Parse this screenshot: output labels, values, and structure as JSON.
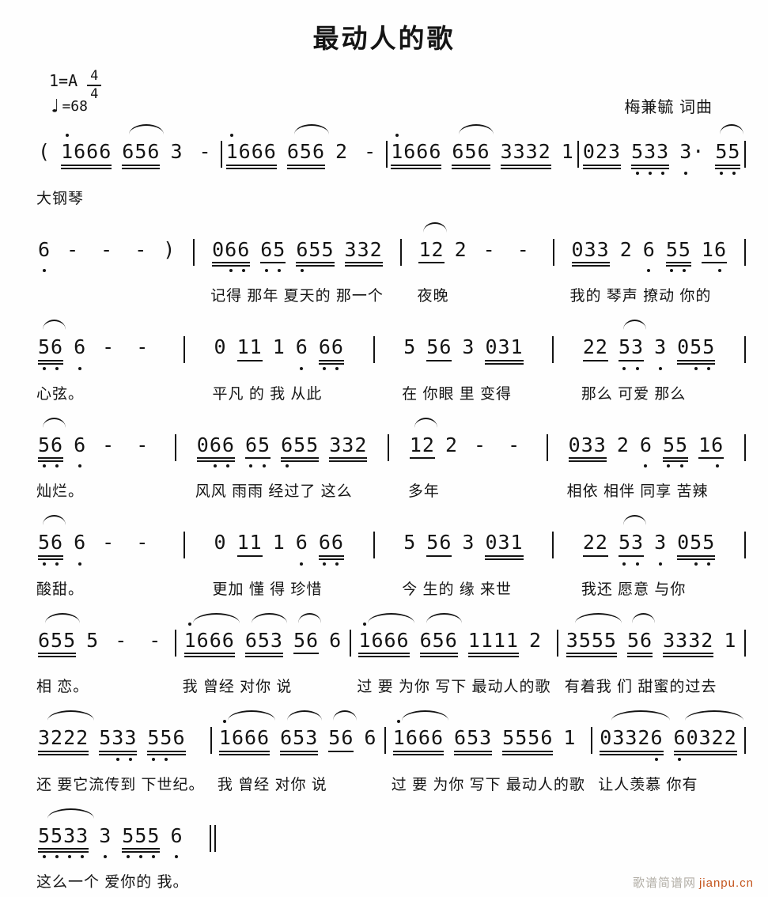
{
  "header": {
    "title": "最动人的歌",
    "key_signature": "1=A",
    "time_signature": {
      "numerator": "4",
      "denominator": "4"
    },
    "tempo": {
      "symbol": "♩",
      "text": "=68"
    },
    "credit": "梅兼毓 词曲"
  },
  "colors": {
    "ink": "#141414",
    "background": "#fefefe",
    "watermark_gray": "#b2aea6",
    "watermark_link": "#c4551e"
  },
  "score": {
    "instrument_label": "大钢琴",
    "lines": [
      {
        "measures": [
          {
            "notes": [
              {
                "t": "("
              },
              {
                "t": "1666",
                "u": 2,
                "da": [
                  0
                ]
              },
              {
                "t": "656",
                "u": 2,
                "slur": true
              },
              {
                "t": "3"
              },
              {
                "t": "-"
              }
            ],
            "lyric": "大钢琴",
            "bar": "|"
          },
          {
            "notes": [
              {
                "t": "1666",
                "u": 2,
                "da": [
                  0
                ]
              },
              {
                "t": "656",
                "u": 2,
                "slur": true
              },
              {
                "t": "2"
              },
              {
                "t": "-"
              }
            ],
            "lyric": "",
            "bar": "|"
          },
          {
            "notes": [
              {
                "t": "1666",
                "u": 2,
                "da": [
                  0
                ]
              },
              {
                "t": "656",
                "u": 2,
                "slur": true
              },
              {
                "t": "3332",
                "u": 2
              },
              {
                "t": "1"
              }
            ],
            "lyric": "",
            "bar": "|"
          },
          {
            "notes": [
              {
                "t": "023",
                "u": 2
              },
              {
                "t": "533",
                "u": 2,
                "db": [
                  0,
                  1,
                  2
                ]
              },
              {
                "t": "3·",
                "db": [
                  0
                ]
              },
              {
                "t": "55",
                "u": 2,
                "db": [
                  0,
                  1
                ],
                "slur": true
              }
            ],
            "lyric": "",
            "bar": "|"
          }
        ]
      },
      {
        "measures": [
          {
            "notes": [
              {
                "t": "6",
                "db": [
                  0
                ]
              },
              {
                "t": "-"
              },
              {
                "t": "-"
              },
              {
                "t": "-"
              },
              {
                "t": ")"
              }
            ],
            "lyric": "",
            "bar": "|"
          },
          {
            "notes": [
              {
                "t": "066",
                "u": 2,
                "db": [
                  1,
                  2
                ]
              },
              {
                "t": "65",
                "u": 1,
                "db": [
                  0,
                  1
                ]
              },
              {
                "t": "655",
                "u": 2,
                "db": [
                  0
                ]
              },
              {
                "t": "332",
                "u": 2
              }
            ],
            "lyric": "记得 那年 夏天的 那一个",
            "bar": "|"
          },
          {
            "notes": [
              {
                "t": "12",
                "u": 1,
                "slur": true
              },
              {
                "t": "2"
              },
              {
                "t": "-"
              },
              {
                "t": "-"
              }
            ],
            "lyric": "夜晚",
            "bar": "|"
          },
          {
            "notes": [
              {
                "t": "033",
                "u": 2
              },
              {
                "t": "2"
              },
              {
                "t": "6",
                "db": [
                  0
                ]
              },
              {
                "t": "55",
                "u": 2,
                "db": [
                  0,
                  1
                ]
              },
              {
                "t": "16",
                "u": 1,
                "db": [
                  1
                ]
              }
            ],
            "lyric": "我的 琴声 撩动 你的",
            "bar": "|"
          }
        ]
      },
      {
        "measures": [
          {
            "notes": [
              {
                "t": "56",
                "u": 2,
                "db": [
                  0,
                  1
                ],
                "slur": true
              },
              {
                "t": "6",
                "db": [
                  0
                ]
              },
              {
                "t": "-"
              },
              {
                "t": "-"
              }
            ],
            "lyric": "心弦。",
            "bar": "|"
          },
          {
            "notes": [
              {
                "t": "0"
              },
              {
                "t": "11",
                "u": 1
              },
              {
                "t": "1"
              },
              {
                "t": "6",
                "db": [
                  0
                ]
              },
              {
                "t": "66",
                "u": 2,
                "db": [
                  0,
                  1
                ]
              }
            ],
            "lyric": "平凡 的 我 从此",
            "bar": "|"
          },
          {
            "notes": [
              {
                "t": "5"
              },
              {
                "t": "56",
                "u": 1
              },
              {
                "t": "3"
              },
              {
                "t": "031",
                "u": 2
              }
            ],
            "lyric": "在 你眼 里 变得",
            "bar": "|"
          },
          {
            "notes": [
              {
                "t": "22",
                "u": 1
              },
              {
                "t": "53",
                "u": 1,
                "db": [
                  0,
                  1
                ],
                "slur": true
              },
              {
                "t": "3",
                "db": [
                  0
                ]
              },
              {
                "t": "055",
                "u": 2,
                "db": [
                  1,
                  2
                ]
              }
            ],
            "lyric": "那么 可爱 那么",
            "bar": "|"
          }
        ]
      },
      {
        "measures": [
          {
            "notes": [
              {
                "t": "56",
                "u": 2,
                "db": [
                  0,
                  1
                ],
                "slur": true
              },
              {
                "t": "6",
                "db": [
                  0
                ]
              },
              {
                "t": "-"
              },
              {
                "t": "-"
              }
            ],
            "lyric": "灿烂。",
            "bar": "|"
          },
          {
            "notes": [
              {
                "t": "066",
                "u": 2,
                "db": [
                  1,
                  2
                ]
              },
              {
                "t": "65",
                "u": 1,
                "db": [
                  0,
                  1
                ]
              },
              {
                "t": "655",
                "u": 2,
                "db": [
                  0
                ]
              },
              {
                "t": "332",
                "u": 2
              }
            ],
            "lyric": "风风 雨雨 经过了 这么",
            "bar": "|"
          },
          {
            "notes": [
              {
                "t": "12",
                "u": 1,
                "slur": true
              },
              {
                "t": "2"
              },
              {
                "t": "-"
              },
              {
                "t": "-"
              }
            ],
            "lyric": "多年",
            "bar": "|"
          },
          {
            "notes": [
              {
                "t": "033",
                "u": 2
              },
              {
                "t": "2"
              },
              {
                "t": "6",
                "db": [
                  0
                ]
              },
              {
                "t": "55",
                "u": 2,
                "db": [
                  0,
                  1
                ]
              },
              {
                "t": "16",
                "u": 1,
                "db": [
                  1
                ]
              }
            ],
            "lyric": "相依 相伴 同享 苦辣",
            "bar": "|"
          }
        ]
      },
      {
        "measures": [
          {
            "notes": [
              {
                "t": "56",
                "u": 2,
                "db": [
                  0,
                  1
                ],
                "slur": true
              },
              {
                "t": "6",
                "db": [
                  0
                ]
              },
              {
                "t": "-"
              },
              {
                "t": "-"
              }
            ],
            "lyric": "酸甜。",
            "bar": "|"
          },
          {
            "notes": [
              {
                "t": "0"
              },
              {
                "t": "11",
                "u": 1
              },
              {
                "t": "1"
              },
              {
                "t": "6",
                "db": [
                  0
                ]
              },
              {
                "t": "66",
                "u": 2,
                "db": [
                  0,
                  1
                ]
              }
            ],
            "lyric": "更加 懂 得 珍惜",
            "bar": "|"
          },
          {
            "notes": [
              {
                "t": "5"
              },
              {
                "t": "56",
                "u": 1
              },
              {
                "t": "3"
              },
              {
                "t": "031",
                "u": 2
              }
            ],
            "lyric": "今 生的 缘 来世",
            "bar": "|"
          },
          {
            "notes": [
              {
                "t": "22",
                "u": 1
              },
              {
                "t": "53",
                "u": 1,
                "db": [
                  0,
                  1
                ],
                "slur": true
              },
              {
                "t": "3",
                "db": [
                  0
                ]
              },
              {
                "t": "055",
                "u": 2,
                "db": [
                  1,
                  2
                ]
              }
            ],
            "lyric": "我还 愿意 与你",
            "bar": "|"
          }
        ]
      },
      {
        "measures": [
          {
            "notes": [
              {
                "t": "655",
                "u": 2,
                "slur": true
              },
              {
                "t": "5"
              },
              {
                "t": "-"
              },
              {
                "t": "-"
              }
            ],
            "lyric": "相 恋。",
            "bar": "|"
          },
          {
            "notes": [
              {
                "t": "1666",
                "u": 2,
                "da": [
                  0
                ],
                "slur": true
              },
              {
                "t": "653",
                "u": 2,
                "slur": true
              },
              {
                "t": "56",
                "u": 1,
                "slur": true
              },
              {
                "t": "6"
              }
            ],
            "lyric": "我 曾经 对你 说",
            "bar": "|"
          },
          {
            "notes": [
              {
                "t": "1666",
                "u": 2,
                "da": [
                  0
                ],
                "slur": true
              },
              {
                "t": "656",
                "u": 2,
                "slur": true
              },
              {
                "t": "1111",
                "u": 2
              },
              {
                "t": "2"
              }
            ],
            "lyric": "过 要 为你 写下 最动人的歌",
            "bar": "|"
          },
          {
            "notes": [
              {
                "t": "3555",
                "u": 2,
                "slur": true
              },
              {
                "t": "56",
                "u": 2,
                "slur": true
              },
              {
                "t": "3332",
                "u": 2
              },
              {
                "t": "1"
              }
            ],
            "lyric": "有着我 们 甜蜜的过去",
            "bar": "|"
          }
        ]
      },
      {
        "measures": [
          {
            "notes": [
              {
                "t": "3222",
                "u": 2,
                "slur": true
              },
              {
                "t": "533",
                "u": 2,
                "db": [
                  1,
                  2
                ]
              },
              {
                "t": "556",
                "u": 2,
                "db": [
                  0,
                  1
                ]
              }
            ],
            "lyric": "还 要它流传到 下世纪。",
            "bar": "|"
          },
          {
            "notes": [
              {
                "t": "1666",
                "u": 2,
                "da": [
                  0
                ],
                "slur": true
              },
              {
                "t": "653",
                "u": 2,
                "slur": true
              },
              {
                "t": "56",
                "u": 1,
                "slur": true
              },
              {
                "t": "6"
              }
            ],
            "lyric": "我 曾经 对你 说",
            "bar": "|"
          },
          {
            "notes": [
              {
                "t": "1666",
                "u": 2,
                "da": [
                  0
                ],
                "slur": true
              },
              {
                "t": "653",
                "u": 2
              },
              {
                "t": "5556",
                "u": 2
              },
              {
                "t": "1"
              }
            ],
            "lyric": "过 要 为你 写下 最动人的歌",
            "bar": "|"
          },
          {
            "notes": [
              {
                "t": "03326",
                "u": 2,
                "db": [
                  4
                ],
                "slur": true
              },
              {
                "t": "60322",
                "u": 2,
                "db": [
                  0
                ],
                "slur": true
              }
            ],
            "lyric": "让人羡慕 你有",
            "bar": "|"
          }
        ]
      },
      {
        "measures": [
          {
            "notes": [
              {
                "t": "5533",
                "u": 2,
                "db": [
                  0,
                  1,
                  2,
                  3
                ],
                "slur": true
              },
              {
                "t": "3",
                "db": [
                  0
                ]
              },
              {
                "t": "555",
                "u": 2,
                "db": [
                  0,
                  1,
                  2
                ]
              },
              {
                "t": "6",
                "db": [
                  0
                ]
              }
            ],
            "lyric": "这么一个 爱你的 我。",
            "bar": "‖"
          }
        ]
      }
    ]
  },
  "footer": {
    "watermark_site": "歌谱简谱网",
    "watermark_link": "jianpu.cn"
  }
}
